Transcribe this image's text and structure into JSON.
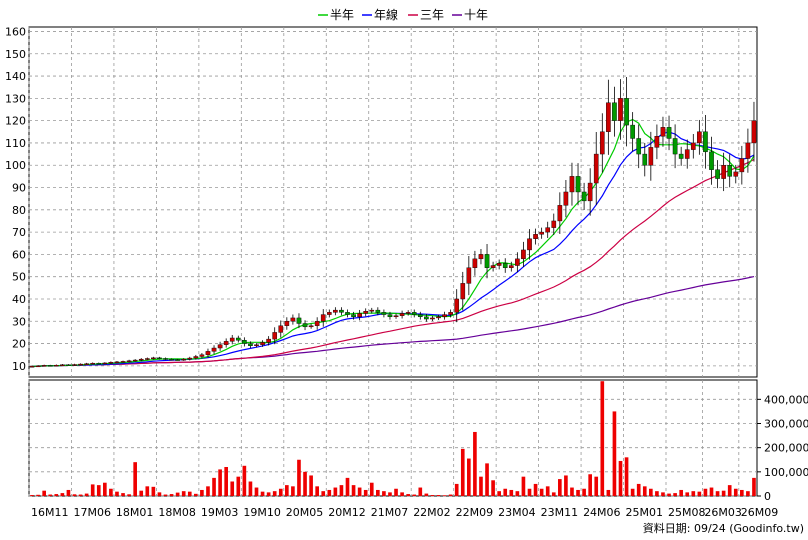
{
  "colors": {
    "half_year": "#00cc00",
    "year_line": "#0000ff",
    "three_year": "#cc0044",
    "ten_year": "#660099",
    "candle_up": "#cc0000",
    "candle_down": "#009900",
    "volume": "#ee0000",
    "grid": "#999999"
  },
  "legend": [
    {
      "label": "半年",
      "color_key": "half_year"
    },
    {
      "label": "年線",
      "color_key": "year_line"
    },
    {
      "label": "三年",
      "color_key": "three_year"
    },
    {
      "label": "十年",
      "color_key": "ten_year"
    }
  ],
  "footer": {
    "text": "資料日期: 09/24 (Goodinfo.tw)"
  },
  "chart_data": {
    "type": "line",
    "x_ticks": [
      "16M11",
      "17M06",
      "18M01",
      "18M08",
      "19M03",
      "19M10",
      "20M05",
      "20M12",
      "21M07",
      "22M02",
      "22M09",
      "23M04",
      "23M11",
      "24M06",
      "25M01",
      "25M08",
      "26M03",
      "26M09"
    ],
    "price_axis": {
      "ticks": [
        10,
        20,
        30,
        40,
        50,
        60,
        70,
        80,
        90,
        100,
        110,
        120,
        130,
        140,
        150,
        160
      ],
      "ylim": [
        5,
        162
      ]
    },
    "volume_axis": {
      "ticks": [
        0,
        100000,
        200000,
        300000,
        400000
      ],
      "tick_labels": [
        "0",
        "100,000",
        "200,000",
        "300,000",
        "400,000"
      ],
      "ylim": [
        0,
        480000
      ]
    },
    "n_periods": 120,
    "close": [
      9.8,
      10,
      10.2,
      10.1,
      10.3,
      10.5,
      10.4,
      10.6,
      10.8,
      11,
      11.2,
      11.1,
      11.3,
      11.6,
      11.8,
      12,
      12.3,
      12.6,
      13,
      13.3,
      13.6,
      13.3,
      13,
      12.8,
      12.7,
      13,
      13.5,
      14.2,
      15,
      16.5,
      18,
      19.5,
      21,
      22.5,
      21.5,
      20,
      19,
      19.5,
      20.5,
      22,
      25,
      28,
      30,
      31.5,
      29,
      27.5,
      28,
      30,
      33,
      34,
      35,
      34,
      33,
      32,
      33.5,
      34.5,
      35,
      34,
      33,
      32,
      32.5,
      33.5,
      34,
      33,
      32,
      31,
      31.5,
      32,
      33,
      34,
      40,
      47,
      54,
      58,
      60,
      54,
      55,
      56,
      54,
      55,
      58,
      62,
      67,
      69,
      70,
      72,
      75,
      82,
      88,
      95,
      88,
      84,
      92,
      105,
      115,
      128,
      120,
      130,
      118,
      112,
      105,
      100,
      108,
      113,
      117,
      112,
      105,
      103,
      107,
      110,
      115,
      106,
      98,
      94,
      100,
      95,
      97,
      103,
      110,
      120
    ],
    "volume": [
      4000,
      5000,
      22000,
      6000,
      8000,
      12000,
      25000,
      7000,
      6000,
      10000,
      48000,
      45000,
      55000,
      30000,
      18000,
      12000,
      7000,
      140000,
      22000,
      40000,
      38000,
      15000,
      6000,
      8000,
      14000,
      20000,
      18000,
      9000,
      25000,
      40000,
      75000,
      110000,
      120000,
      60000,
      80000,
      125000,
      60000,
      35000,
      18000,
      15000,
      20000,
      30000,
      45000,
      40000,
      150000,
      100000,
      85000,
      40000,
      20000,
      25000,
      35000,
      45000,
      75000,
      45000,
      35000,
      25000,
      55000,
      25000,
      20000,
      15000,
      30000,
      15000,
      8000,
      6000,
      35000,
      10000,
      4000,
      4000,
      3000,
      6000,
      50000,
      195000,
      155000,
      265000,
      80000,
      135000,
      65000,
      20000,
      30000,
      25000,
      20000,
      80000,
      30000,
      50000,
      30000,
      40000,
      15000,
      70000,
      85000,
      35000,
      25000,
      30000,
      90000,
      80000,
      475000,
      25000,
      350000,
      145000,
      160000,
      30000,
      50000,
      40000,
      30000,
      20000,
      15000,
      10000,
      12000,
      25000,
      15000,
      20000,
      18000,
      30000,
      35000,
      20000,
      22000,
      45000,
      30000,
      25000,
      20000,
      75000
    ],
    "series": [
      {
        "name": "半年",
        "color_key": "half_year",
        "window": 6
      },
      {
        "name": "年線",
        "color_key": "year_line",
        "window": 12
      },
      {
        "name": "三年",
        "color_key": "three_year",
        "window": 36
      },
      {
        "name": "十年",
        "color_key": "ten_year",
        "window": 120
      }
    ],
    "grid": true,
    "legend_position": "top-center"
  }
}
